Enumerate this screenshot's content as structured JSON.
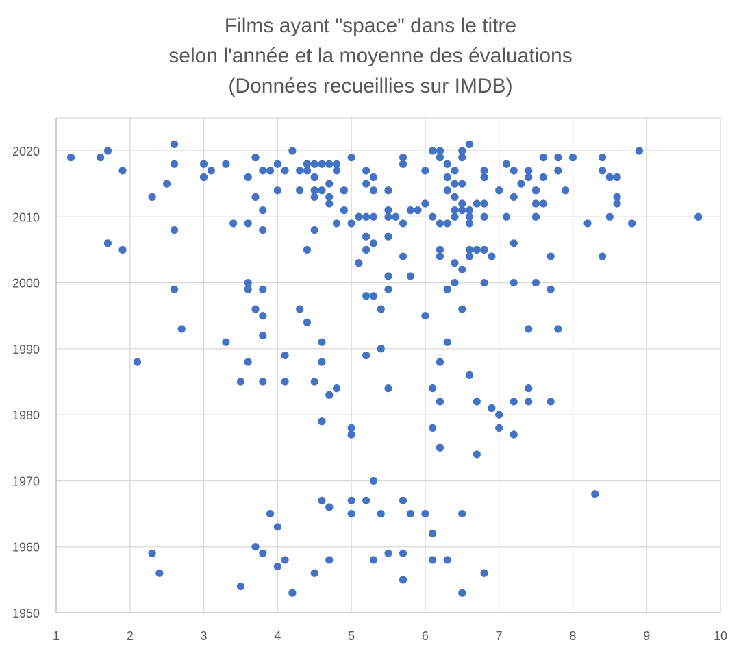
{
  "chart_data": {
    "type": "scatter",
    "title_lines": [
      "Films ayant \"space\" dans le titre",
      "selon l'année et la moyenne des évaluations",
      "(Données recueillies sur IMDB)"
    ],
    "xlabel": "",
    "ylabel": "",
    "xlim": [
      1,
      10
    ],
    "ylim": [
      1950,
      2023
    ],
    "x_ticks": [
      "1",
      "2",
      "3",
      "4",
      "5",
      "6",
      "7",
      "8",
      "9",
      "10"
    ],
    "y_ticks": [
      "1950",
      "1960",
      "1970",
      "1980",
      "1990",
      "2000",
      "2010",
      "2020"
    ],
    "grid": true,
    "marker_color": "#4472C4",
    "grid_color": "#D9D9D9",
    "axis_color": "#BFBFBF",
    "points": [
      [
        1.2,
        2019
      ],
      [
        1.6,
        2019
      ],
      [
        1.7,
        2020
      ],
      [
        1.9,
        2017
      ],
      [
        1.7,
        2006
      ],
      [
        1.9,
        2005
      ],
      [
        2.1,
        1988
      ],
      [
        2.3,
        1959
      ],
      [
        2.4,
        1956
      ],
      [
        2.3,
        2013
      ],
      [
        2.5,
        2015
      ],
      [
        2.6,
        2021
      ],
      [
        2.6,
        2018
      ],
      [
        2.6,
        2008
      ],
      [
        2.6,
        1999
      ],
      [
        2.7,
        1993
      ],
      [
        3.0,
        2018
      ],
      [
        3.0,
        2016
      ],
      [
        3.1,
        2017
      ],
      [
        3.3,
        2018
      ],
      [
        3.3,
        1991
      ],
      [
        3.4,
        2009
      ],
      [
        3.5,
        1985
      ],
      [
        3.5,
        1954
      ],
      [
        3.6,
        2016
      ],
      [
        3.6,
        2009
      ],
      [
        3.6,
        2000
      ],
      [
        3.6,
        1999
      ],
      [
        3.6,
        1988
      ],
      [
        3.7,
        2019
      ],
      [
        3.7,
        2013
      ],
      [
        3.7,
        1996
      ],
      [
        3.7,
        1960
      ],
      [
        3.8,
        2017
      ],
      [
        3.8,
        2011
      ],
      [
        3.8,
        2008
      ],
      [
        3.8,
        1999
      ],
      [
        3.8,
        1995
      ],
      [
        3.8,
        1992
      ],
      [
        3.8,
        1985
      ],
      [
        3.8,
        1959
      ],
      [
        3.9,
        2017
      ],
      [
        3.9,
        1965
      ],
      [
        4.0,
        2018
      ],
      [
        4.0,
        2014
      ],
      [
        4.0,
        1963
      ],
      [
        4.0,
        1957
      ],
      [
        4.1,
        2017
      ],
      [
        4.1,
        1989
      ],
      [
        4.1,
        1985
      ],
      [
        4.1,
        1958
      ],
      [
        4.2,
        2020
      ],
      [
        4.2,
        1953
      ],
      [
        4.3,
        2017
      ],
      [
        4.3,
        2014
      ],
      [
        4.3,
        1996
      ],
      [
        4.4,
        2018
      ],
      [
        4.4,
        2017
      ],
      [
        4.4,
        2005
      ],
      [
        4.4,
        1994
      ],
      [
        4.5,
        2018
      ],
      [
        4.5,
        2016
      ],
      [
        4.5,
        2014
      ],
      [
        4.5,
        2013
      ],
      [
        4.5,
        2008
      ],
      [
        4.5,
        1985
      ],
      [
        4.5,
        1956
      ],
      [
        4.6,
        2018
      ],
      [
        4.6,
        2014
      ],
      [
        4.6,
        1991
      ],
      [
        4.6,
        1988
      ],
      [
        4.6,
        1979
      ],
      [
        4.6,
        1967
      ],
      [
        4.7,
        2018
      ],
      [
        4.7,
        2015
      ],
      [
        4.7,
        2013
      ],
      [
        4.7,
        2012
      ],
      [
        4.7,
        1983
      ],
      [
        4.7,
        1966
      ],
      [
        4.7,
        1958
      ],
      [
        4.8,
        2018
      ],
      [
        4.8,
        2017
      ],
      [
        4.8,
        2009
      ],
      [
        4.8,
        1984
      ],
      [
        4.9,
        2014
      ],
      [
        4.9,
        2011
      ],
      [
        5.0,
        2019
      ],
      [
        5.0,
        2009
      ],
      [
        5.0,
        1978
      ],
      [
        5.0,
        1977
      ],
      [
        5.0,
        1967
      ],
      [
        5.0,
        1965
      ],
      [
        5.1,
        2010
      ],
      [
        5.1,
        2003
      ],
      [
        5.2,
        2017
      ],
      [
        5.2,
        2015
      ],
      [
        5.2,
        2010
      ],
      [
        5.2,
        2007
      ],
      [
        5.2,
        2005
      ],
      [
        5.2,
        1998
      ],
      [
        5.2,
        1989
      ],
      [
        5.2,
        1967
      ],
      [
        5.3,
        2016
      ],
      [
        5.3,
        2014
      ],
      [
        5.3,
        2010
      ],
      [
        5.3,
        2006
      ],
      [
        5.3,
        1998
      ],
      [
        5.3,
        1970
      ],
      [
        5.3,
        1958
      ],
      [
        5.4,
        1996
      ],
      [
        5.4,
        1990
      ],
      [
        5.4,
        1965
      ],
      [
        5.5,
        2014
      ],
      [
        5.5,
        2011
      ],
      [
        5.5,
        2010
      ],
      [
        5.5,
        2007
      ],
      [
        5.5,
        2001
      ],
      [
        5.5,
        1999
      ],
      [
        5.5,
        1984
      ],
      [
        5.5,
        1959
      ],
      [
        5.6,
        2010
      ],
      [
        5.7,
        2019
      ],
      [
        5.7,
        2018
      ],
      [
        5.7,
        2009
      ],
      [
        5.7,
        2004
      ],
      [
        5.7,
        1967
      ],
      [
        5.7,
        1959
      ],
      [
        5.7,
        1955
      ],
      [
        5.8,
        2011
      ],
      [
        5.8,
        2001
      ],
      [
        5.8,
        1965
      ],
      [
        5.9,
        2011
      ],
      [
        6.0,
        2017
      ],
      [
        6.0,
        2012
      ],
      [
        6.0,
        1995
      ],
      [
        6.0,
        1965
      ],
      [
        6.1,
        2020
      ],
      [
        6.1,
        2010
      ],
      [
        6.1,
        1984
      ],
      [
        6.1,
        1978
      ],
      [
        6.1,
        1962
      ],
      [
        6.1,
        1958
      ],
      [
        6.2,
        2020
      ],
      [
        6.2,
        2019
      ],
      [
        6.2,
        2009
      ],
      [
        6.2,
        2005
      ],
      [
        6.2,
        2004
      ],
      [
        6.2,
        1988
      ],
      [
        6.2,
        1982
      ],
      [
        6.2,
        1975
      ],
      [
        6.3,
        2018
      ],
      [
        6.3,
        2016
      ],
      [
        6.3,
        2014
      ],
      [
        6.3,
        2009
      ],
      [
        6.3,
        1999
      ],
      [
        6.3,
        1991
      ],
      [
        6.3,
        1958
      ],
      [
        6.4,
        2017
      ],
      [
        6.4,
        2015
      ],
      [
        6.4,
        2013
      ],
      [
        6.4,
        2011
      ],
      [
        6.4,
        2010
      ],
      [
        6.4,
        2003
      ],
      [
        6.4,
        2000
      ],
      [
        6.5,
        2020
      ],
      [
        6.5,
        2019
      ],
      [
        6.5,
        2015
      ],
      [
        6.5,
        2012
      ],
      [
        6.5,
        2011
      ],
      [
        6.5,
        2002
      ],
      [
        6.5,
        1996
      ],
      [
        6.5,
        1965
      ],
      [
        6.5,
        1953
      ],
      [
        6.6,
        2021
      ],
      [
        6.6,
        2011
      ],
      [
        6.6,
        2010
      ],
      [
        6.6,
        2009
      ],
      [
        6.6,
        2005
      ],
      [
        6.6,
        2004
      ],
      [
        6.6,
        1986
      ],
      [
        6.7,
        2012
      ],
      [
        6.7,
        2005
      ],
      [
        6.7,
        1982
      ],
      [
        6.7,
        1974
      ],
      [
        6.8,
        2017
      ],
      [
        6.8,
        2016
      ],
      [
        6.8,
        2012
      ],
      [
        6.8,
        2010
      ],
      [
        6.8,
        2005
      ],
      [
        6.8,
        2000
      ],
      [
        6.8,
        1956
      ],
      [
        6.9,
        2004
      ],
      [
        6.9,
        1981
      ],
      [
        7.0,
        2014
      ],
      [
        7.0,
        1980
      ],
      [
        7.0,
        1978
      ],
      [
        7.1,
        2018
      ],
      [
        7.1,
        2010
      ],
      [
        7.2,
        2017
      ],
      [
        7.2,
        2013
      ],
      [
        7.2,
        2006
      ],
      [
        7.2,
        2000
      ],
      [
        7.2,
        1982
      ],
      [
        7.2,
        1977
      ],
      [
        7.3,
        2015
      ],
      [
        7.4,
        2017
      ],
      [
        7.4,
        2016
      ],
      [
        7.4,
        1993
      ],
      [
        7.4,
        1984
      ],
      [
        7.4,
        1982
      ],
      [
        7.5,
        2014
      ],
      [
        7.5,
        2012
      ],
      [
        7.5,
        2010
      ],
      [
        7.5,
        2000
      ],
      [
        7.6,
        2019
      ],
      [
        7.6,
        2016
      ],
      [
        7.6,
        2012
      ],
      [
        7.7,
        2004
      ],
      [
        7.7,
        1999
      ],
      [
        7.7,
        1982
      ],
      [
        7.8,
        2019
      ],
      [
        7.8,
        2017
      ],
      [
        7.8,
        1993
      ],
      [
        7.9,
        2014
      ],
      [
        8.0,
        2019
      ],
      [
        8.2,
        2009
      ],
      [
        8.3,
        1968
      ],
      [
        8.4,
        2019
      ],
      [
        8.4,
        2017
      ],
      [
        8.4,
        2004
      ],
      [
        8.5,
        2016
      ],
      [
        8.5,
        2010
      ],
      [
        8.6,
        2016
      ],
      [
        8.6,
        2013
      ],
      [
        8.6,
        2012
      ],
      [
        8.8,
        2009
      ],
      [
        8.9,
        2020
      ],
      [
        9.7,
        2010
      ]
    ]
  }
}
